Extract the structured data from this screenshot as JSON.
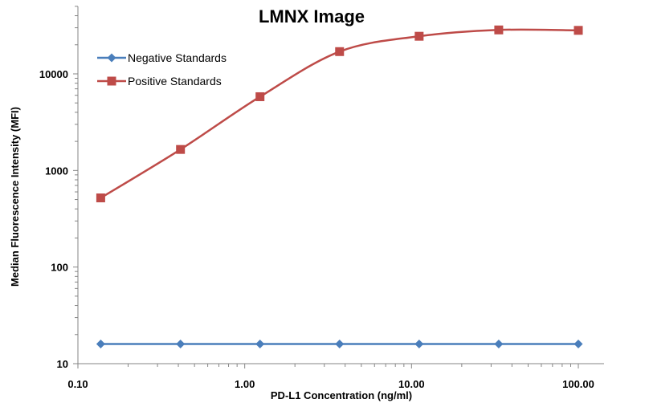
{
  "chart_data": {
    "type": "line",
    "title": "LMNX Image",
    "xlabel": "PD-L1 Concentration (ng/ml)",
    "ylabel": "Median Fluorescence Intensity (MFI)",
    "x_scale": "log",
    "y_scale": "log",
    "xlim": [
      0.1,
      100
    ],
    "ylim": [
      10,
      40000
    ],
    "x_ticks": [
      {
        "value": 0.1,
        "label": "0.10"
      },
      {
        "value": 1,
        "label": "1.00"
      },
      {
        "value": 10,
        "label": "10.00"
      },
      {
        "value": 100,
        "label": "100.00"
      }
    ],
    "y_ticks": [
      {
        "value": 10,
        "label": "10"
      },
      {
        "value": 100,
        "label": "100"
      },
      {
        "value": 1000,
        "label": "1000"
      },
      {
        "value": 10000,
        "label": "10000"
      }
    ],
    "grid": false,
    "legend_position": "top-left",
    "x": [
      0.137,
      0.412,
      1.235,
      3.704,
      11.11,
      33.33,
      100
    ],
    "series": [
      {
        "name": "Negative Standards",
        "color": "#4a7ebb",
        "marker": "diamond",
        "smooth": false,
        "values": [
          16,
          16,
          16,
          16,
          16,
          16,
          16
        ]
      },
      {
        "name": "Positive Standards",
        "color": "#be4b48",
        "marker": "square",
        "smooth": true,
        "values": [
          520,
          1650,
          5800,
          17000,
          24500,
          28500,
          28200
        ]
      }
    ]
  }
}
